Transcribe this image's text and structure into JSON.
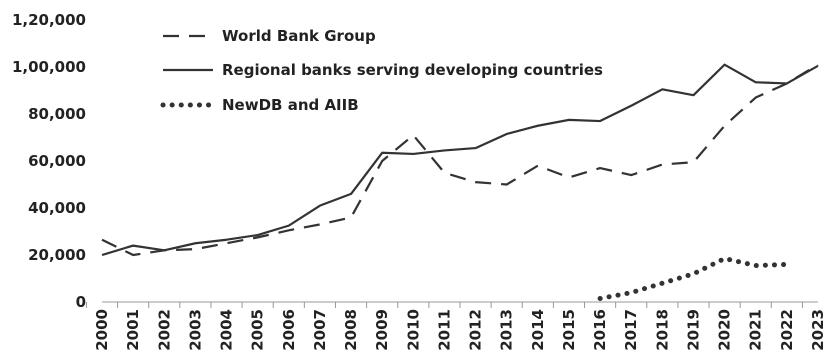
{
  "chart_data": {
    "type": "line",
    "title": "",
    "xlabel": "",
    "ylabel": "",
    "x": [
      "2000",
      "2001",
      "2002",
      "2003",
      "2004",
      "2005",
      "2006",
      "2007",
      "2008",
      "2009",
      "2010",
      "2011",
      "2012",
      "2013",
      "2014",
      "2015",
      "2016",
      "2017",
      "2018",
      "2019",
      "2020",
      "2021",
      "2022",
      "2023"
    ],
    "y_ticks": [
      "0",
      "20,000",
      "40,000",
      "60,000",
      "80,000",
      "1,00,000",
      "1,20,000"
    ],
    "ylim": [
      0,
      120000
    ],
    "grid": false,
    "legend_position": "top-left",
    "series": [
      {
        "name": "World Bank Group",
        "style": "dashed",
        "color": "#333333",
        "values": [
          26500,
          20000,
          22000,
          22500,
          25000,
          27500,
          30500,
          33000,
          36000,
          60000,
          71000,
          55000,
          51000,
          50000,
          58000,
          53000,
          57000,
          54000,
          58500,
          59500,
          75000,
          87000,
          93000,
          101000
        ]
      },
      {
        "name": "Regional banks serving developing countries",
        "style": "solid",
        "color": "#333333",
        "values": [
          20000,
          24000,
          22000,
          25000,
          26500,
          28500,
          32500,
          41000,
          46000,
          63500,
          63000,
          64500,
          65500,
          71500,
          75000,
          77500,
          77000,
          83500,
          90500,
          88000,
          101000,
          93500,
          93000,
          100500
        ]
      },
      {
        "name": "NewDB and AIIB",
        "style": "dotted",
        "color": "#333333",
        "values": [
          null,
          null,
          null,
          null,
          null,
          null,
          null,
          null,
          null,
          null,
          null,
          null,
          null,
          null,
          null,
          null,
          1500,
          4000,
          8000,
          12000,
          18500,
          15500,
          16000,
          null
        ]
      }
    ]
  }
}
